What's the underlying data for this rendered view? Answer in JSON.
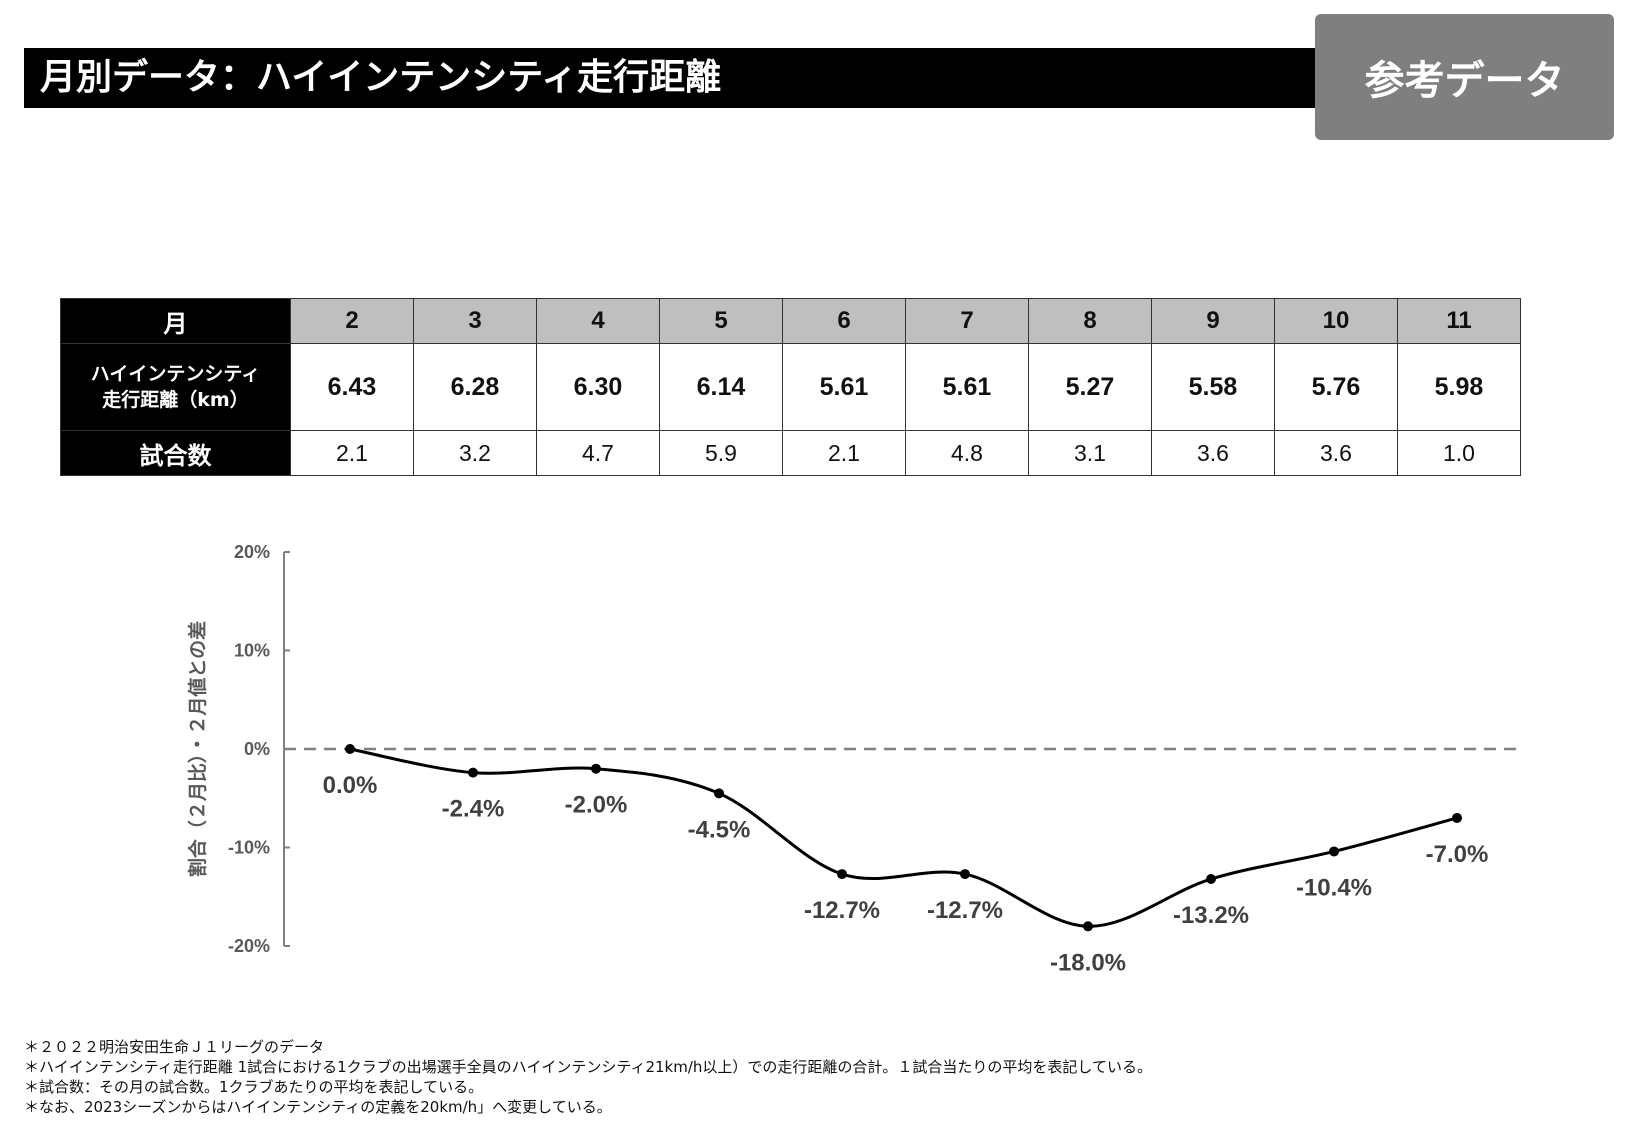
{
  "header": {
    "title": "月別データ：ハイインテンシティ走行距離",
    "badge": "参考データ"
  },
  "table": {
    "row_labels": {
      "month": "月",
      "distance_line1": "ハイインテンシティ",
      "distance_line2": "走行距離（km）",
      "games": "試合数"
    },
    "months": [
      "2",
      "3",
      "4",
      "5",
      "6",
      "7",
      "8",
      "9",
      "10",
      "11"
    ],
    "distance_km": [
      "6.43",
      "6.28",
      "6.30",
      "6.14",
      "5.61",
      "5.61",
      "5.27",
      "5.58",
      "5.76",
      "5.98"
    ],
    "games": [
      "2.1",
      "3.2",
      "4.7",
      "5.9",
      "2.1",
      "4.8",
      "3.1",
      "3.6",
      "3.6",
      "1.0"
    ]
  },
  "chart_data": {
    "type": "line",
    "categories": [
      "2",
      "3",
      "4",
      "5",
      "6",
      "7",
      "8",
      "9",
      "10",
      "11"
    ],
    "series": [
      {
        "values": [
          0.0,
          -2.4,
          -2.0,
          -4.5,
          -12.7,
          -12.7,
          -18.0,
          -13.2,
          -10.4,
          -7.0
        ]
      }
    ],
    "data_labels": [
      "0.0%",
      "-2.4%",
      "-2.0%",
      "-4.5%",
      "-12.7%",
      "-12.7%",
      "-18.0%",
      "-13.2%",
      "-10.4%",
      "-7.0%"
    ],
    "ylabel": "割合（２月比）・２月値との差",
    "ylim": [
      -20,
      20
    ],
    "yticks": [
      20,
      10,
      0,
      -10,
      -20
    ],
    "ytick_labels": [
      "20%",
      "10%",
      "0%",
      "-10%",
      "-20%"
    ],
    "reference_line": 0,
    "smooth": true,
    "grid": false,
    "line_color": "#000000",
    "reference_line_color": "#808080"
  },
  "notes": [
    "＊２０２２明治安田生命Ｊ１リーグのデータ",
    "＊ハイインテンシティ走行距離 1試合における1クラブの出場選手全員のハイインテンシティ21km/h以上）での走行距離の合計。１試合当たりの平均を表記している。",
    "＊試合数：その月の試合数。1クラブあたりの平均を表記している。",
    "＊なお、2023シーズンからはハイインテンシティの定義を20km/h」へ変更している。"
  ]
}
